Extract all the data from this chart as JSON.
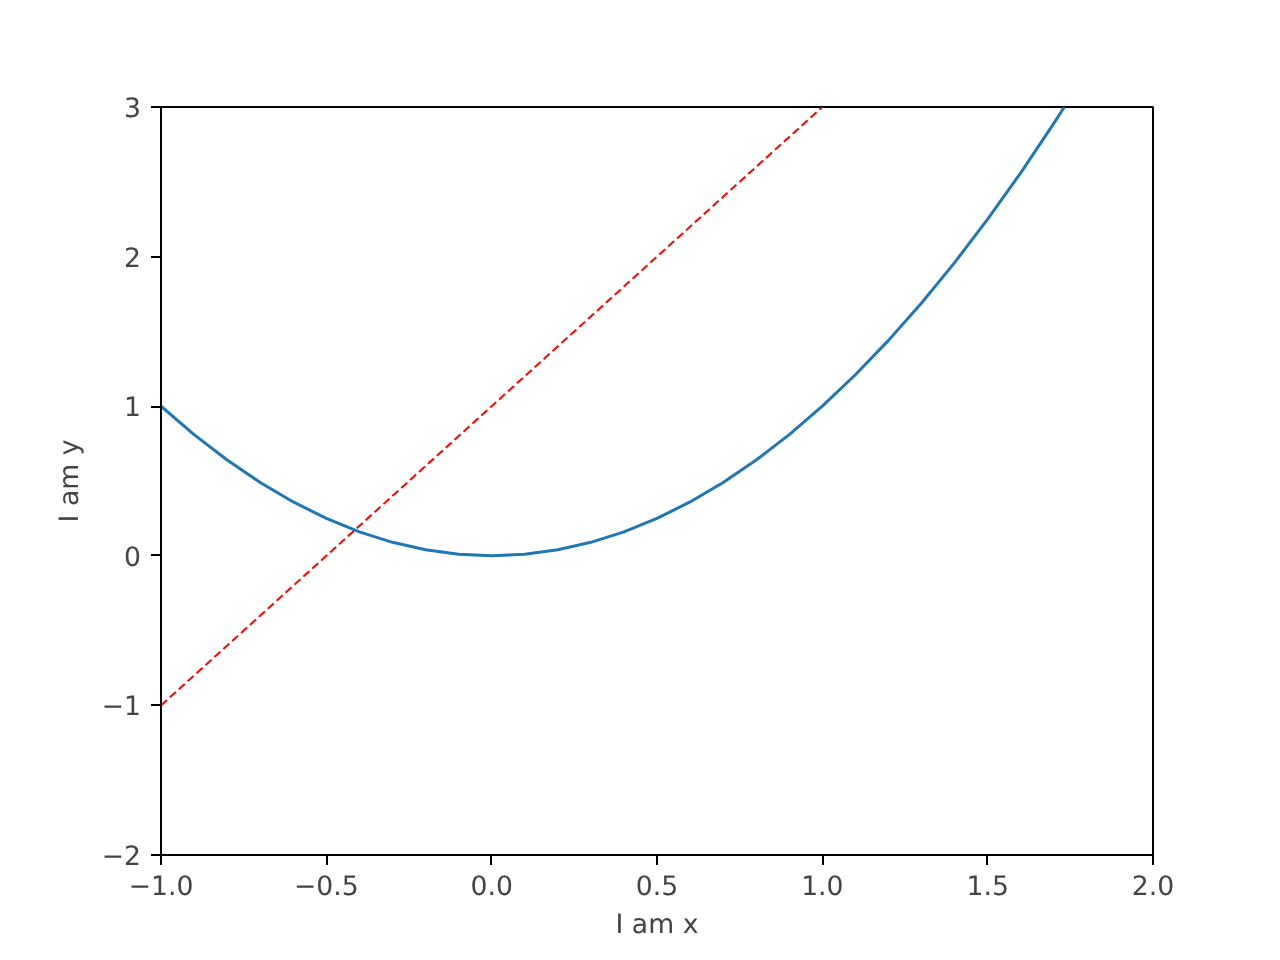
{
  "chart_data": {
    "type": "line",
    "xlabel": "I am x",
    "ylabel": "I am y",
    "series": [
      {
        "color": "#1f77b4",
        "line_style": "solid",
        "x": [
          -1,
          -0.9,
          -0.8,
          -0.7,
          -0.6,
          -0.5,
          -0.4,
          -0.3,
          -0.2,
          -0.1,
          0,
          0.1,
          0.2,
          0.3,
          0.4,
          0.5,
          0.6,
          0.7,
          0.8,
          0.9,
          1,
          1.1,
          1.2,
          1.3,
          1.4,
          1.5,
          1.6,
          1.7,
          1.732
        ],
        "values": [
          1,
          0.81,
          0.64,
          0.49,
          0.36,
          0.25,
          0.16,
          0.09,
          0.04,
          0.01,
          0,
          0.01,
          0.04,
          0.09,
          0.16,
          0.25,
          0.36,
          0.49,
          0.64,
          0.81,
          1,
          1.21,
          1.44,
          1.69,
          1.96,
          2.25,
          2.56,
          2.89,
          3.0
        ]
      },
      {
        "color": "#ff0000",
        "line_style": "dashed",
        "x": [
          -1,
          1
        ],
        "values": [
          -1,
          3
        ]
      }
    ],
    "xlim": [
      -1,
      2
    ],
    "ylim": [
      -2,
      3
    ],
    "xticks": [
      {
        "value": -1,
        "label": "−1.0"
      },
      {
        "value": -0.5,
        "label": "−0.5"
      },
      {
        "value": 0,
        "label": "0.0"
      },
      {
        "value": 0.5,
        "label": "0.5"
      },
      {
        "value": 1,
        "label": "1.0"
      },
      {
        "value": 1.5,
        "label": "1.5"
      },
      {
        "value": 2,
        "label": "2.0"
      }
    ],
    "yticks": [
      {
        "value": -2,
        "label": "−2"
      },
      {
        "value": -1,
        "label": "−1"
      },
      0,
      1,
      2,
      3
    ],
    "grid": false,
    "marker": "none"
  }
}
